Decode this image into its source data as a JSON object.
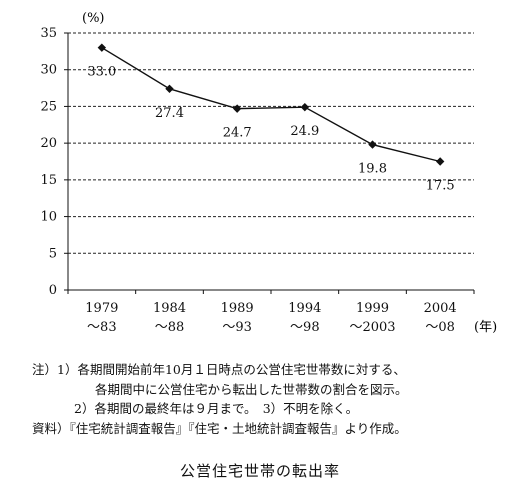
{
  "chart_data": {
    "type": "line",
    "y_unit": "(%)",
    "x_unit": "(年)",
    "ylim": [
      0,
      35
    ],
    "y_ticks": [
      0,
      5,
      10,
      15,
      20,
      25,
      30,
      35
    ],
    "grid": "dashed horizontal",
    "categories": [
      {
        "line1": "1979",
        "line2": "～83"
      },
      {
        "line1": "1984",
        "line2": "～88"
      },
      {
        "line1": "1989",
        "line2": "～93"
      },
      {
        "line1": "1994",
        "line2": "～98"
      },
      {
        "line1": "1999",
        "line2": "～2003"
      },
      {
        "line1": "2004",
        "line2": "～08"
      }
    ],
    "series": [
      {
        "values": [
          33.0,
          27.4,
          24.7,
          24.9,
          19.8,
          17.5
        ],
        "labels": [
          "33.0",
          "27.4",
          "24.7",
          "24.9",
          "19.8",
          "17.5"
        ]
      }
    ]
  },
  "notes": {
    "note1_line1": "注）1）各期間開始前年10月１日時点の公営住宅世帯数に対する、",
    "note1_line2": "各期間中に公営住宅から転出した世帯数の割合を図示。",
    "note2": "2）各期間の最終年は９月まで。　3）不明を除く。",
    "source": "資料）『住宅統計調査報告』『住宅・土地統計調査報告』より作成。"
  },
  "figure_title": "公営住宅世帯の転出率",
  "colors": {
    "line": "#111111",
    "grid": "#222222"
  }
}
